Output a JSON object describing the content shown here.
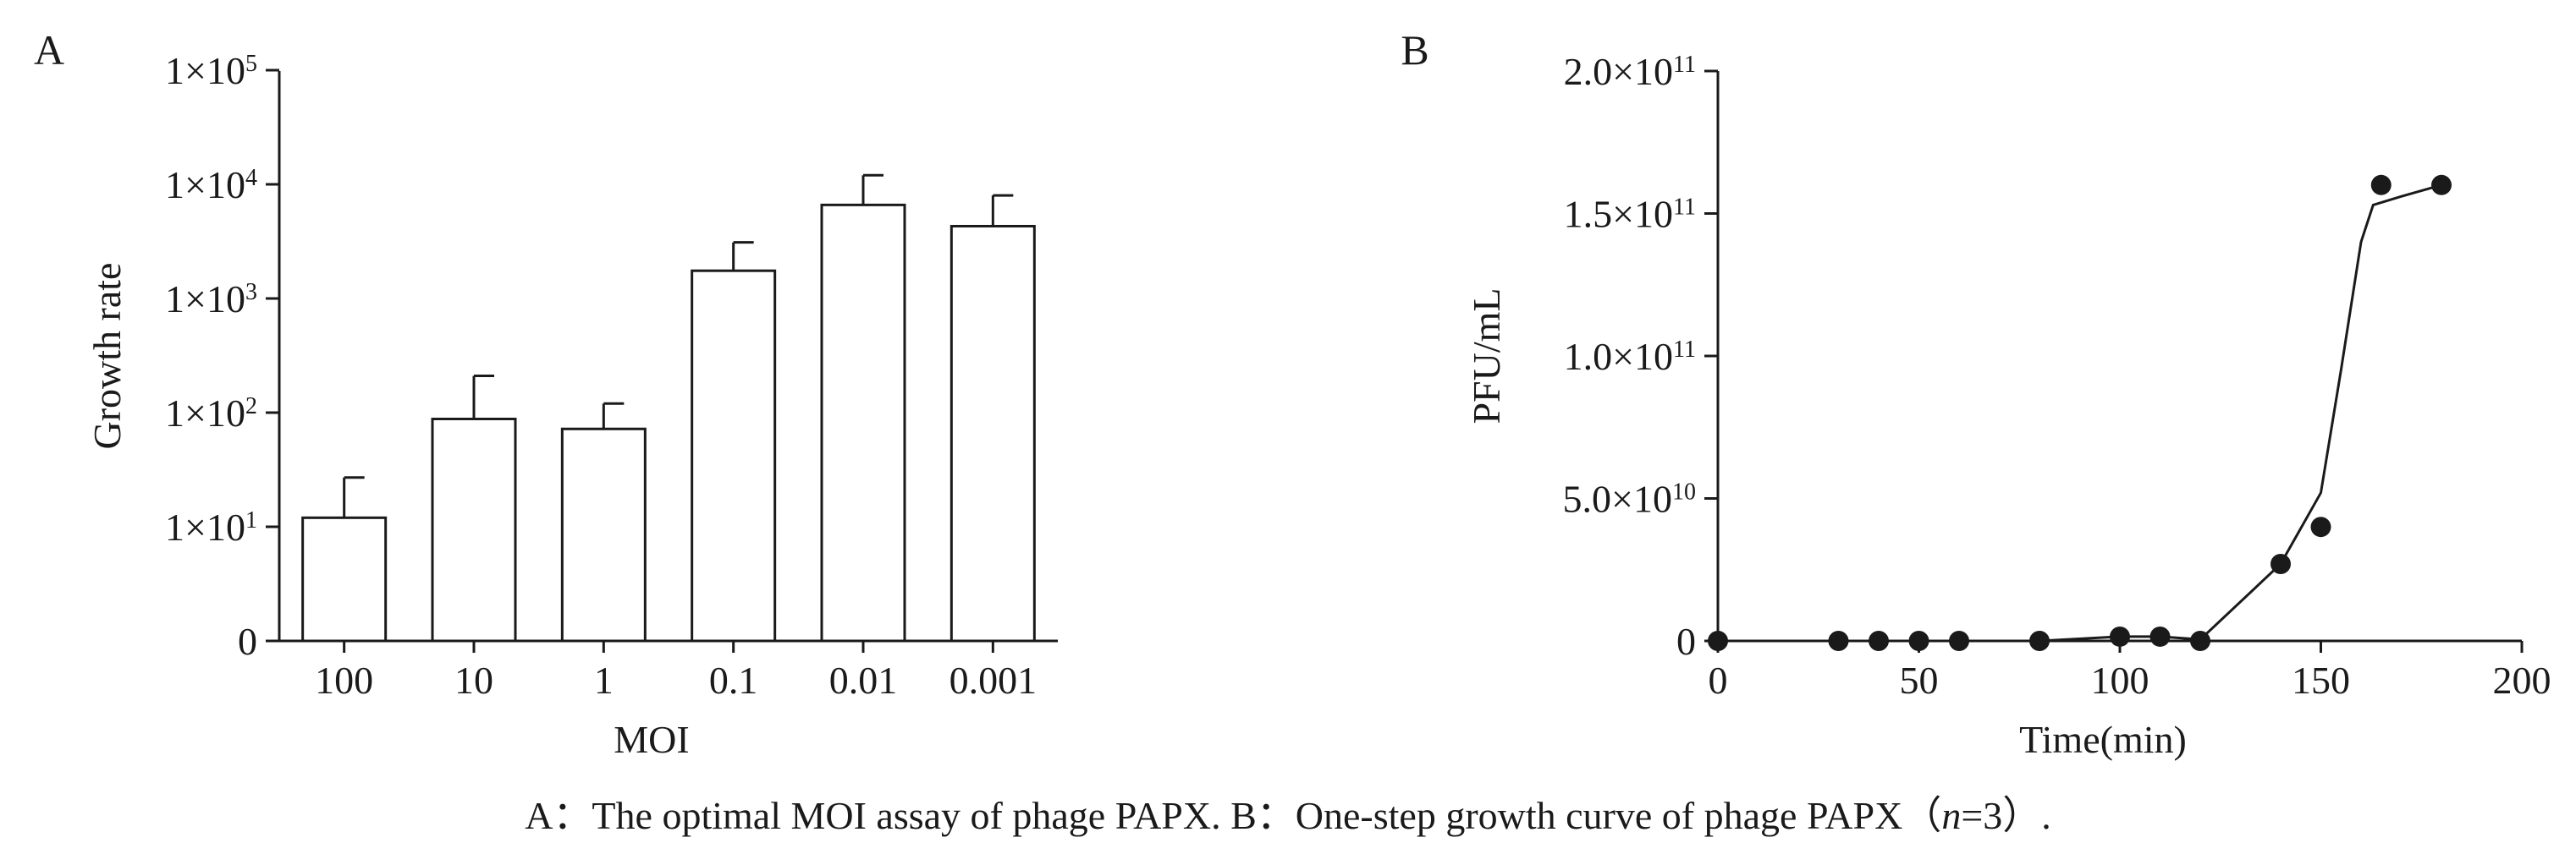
{
  "chart_data": [
    {
      "panel_label": "A",
      "type": "bar",
      "ylabel": "Growth rate",
      "xlabel": "MOI",
      "y_scale": "log",
      "categories": [
        "100",
        "10",
        "1",
        "0.1",
        "0.01",
        "0.001"
      ],
      "values": [
        12,
        88,
        72,
        1750,
        6600,
        4300
      ],
      "error_upper": [
        27,
        210,
        120,
        3100,
        12000,
        8000
      ],
      "yticks": [
        {
          "value": 0,
          "base": "0",
          "exp": ""
        },
        {
          "value": 10,
          "base": "1×10",
          "exp": "1"
        },
        {
          "value": 100,
          "base": "1×10",
          "exp": "2"
        },
        {
          "value": 1000,
          "base": "1×10",
          "exp": "3"
        },
        {
          "value": 10000,
          "base": "1×10",
          "exp": "4"
        },
        {
          "value": 100000,
          "base": "1×10",
          "exp": "5"
        }
      ],
      "grid": false,
      "legend": "none"
    },
    {
      "panel_label": "B",
      "type": "line",
      "ylabel": "PFU/mL",
      "xlabel": "Time(min)",
      "xlim": [
        0,
        200
      ],
      "ylim": [
        0,
        200000000000
      ],
      "series": [
        {
          "x": [
            0,
            30,
            40,
            50,
            60,
            80,
            100,
            110,
            120,
            140,
            150,
            165,
            180
          ],
          "y": [
            0,
            0,
            0,
            0,
            0,
            0,
            1500000000,
            1500000000,
            0,
            27000000000,
            40000000000,
            160000000000,
            160000000000
          ]
        }
      ],
      "line_path": {
        "x": [
          0,
          30,
          40,
          50,
          60,
          80,
          100,
          110,
          120,
          140,
          150,
          155,
          160,
          163,
          170,
          180
        ],
        "y": [
          0,
          0,
          0,
          0,
          0,
          0,
          1500000000,
          1500000000,
          500000000,
          27000000000,
          52000000000,
          95000000000,
          140000000000,
          153000000000,
          156000000000,
          160000000000
        ]
      },
      "xticks": [
        "0",
        "50",
        "100",
        "150",
        "200"
      ],
      "yticks": [
        {
          "value": 0,
          "base": "0",
          "exp": ""
        },
        {
          "value": 50000000000,
          "base": "5.0×10",
          "exp": "10"
        },
        {
          "value": 100000000000,
          "base": "1.0×10",
          "exp": "11"
        },
        {
          "value": 150000000000,
          "base": "1.5×10",
          "exp": "11"
        },
        {
          "value": 200000000000,
          "base": "2.0×10",
          "exp": "11"
        }
      ],
      "grid": false,
      "legend": "none"
    }
  ],
  "caption": {
    "part1": "A：The optimal MOI assay of phage PAPX. B：One-step growth curve of phage PAPX（",
    "italic": "n",
    "part2": "=3）."
  }
}
